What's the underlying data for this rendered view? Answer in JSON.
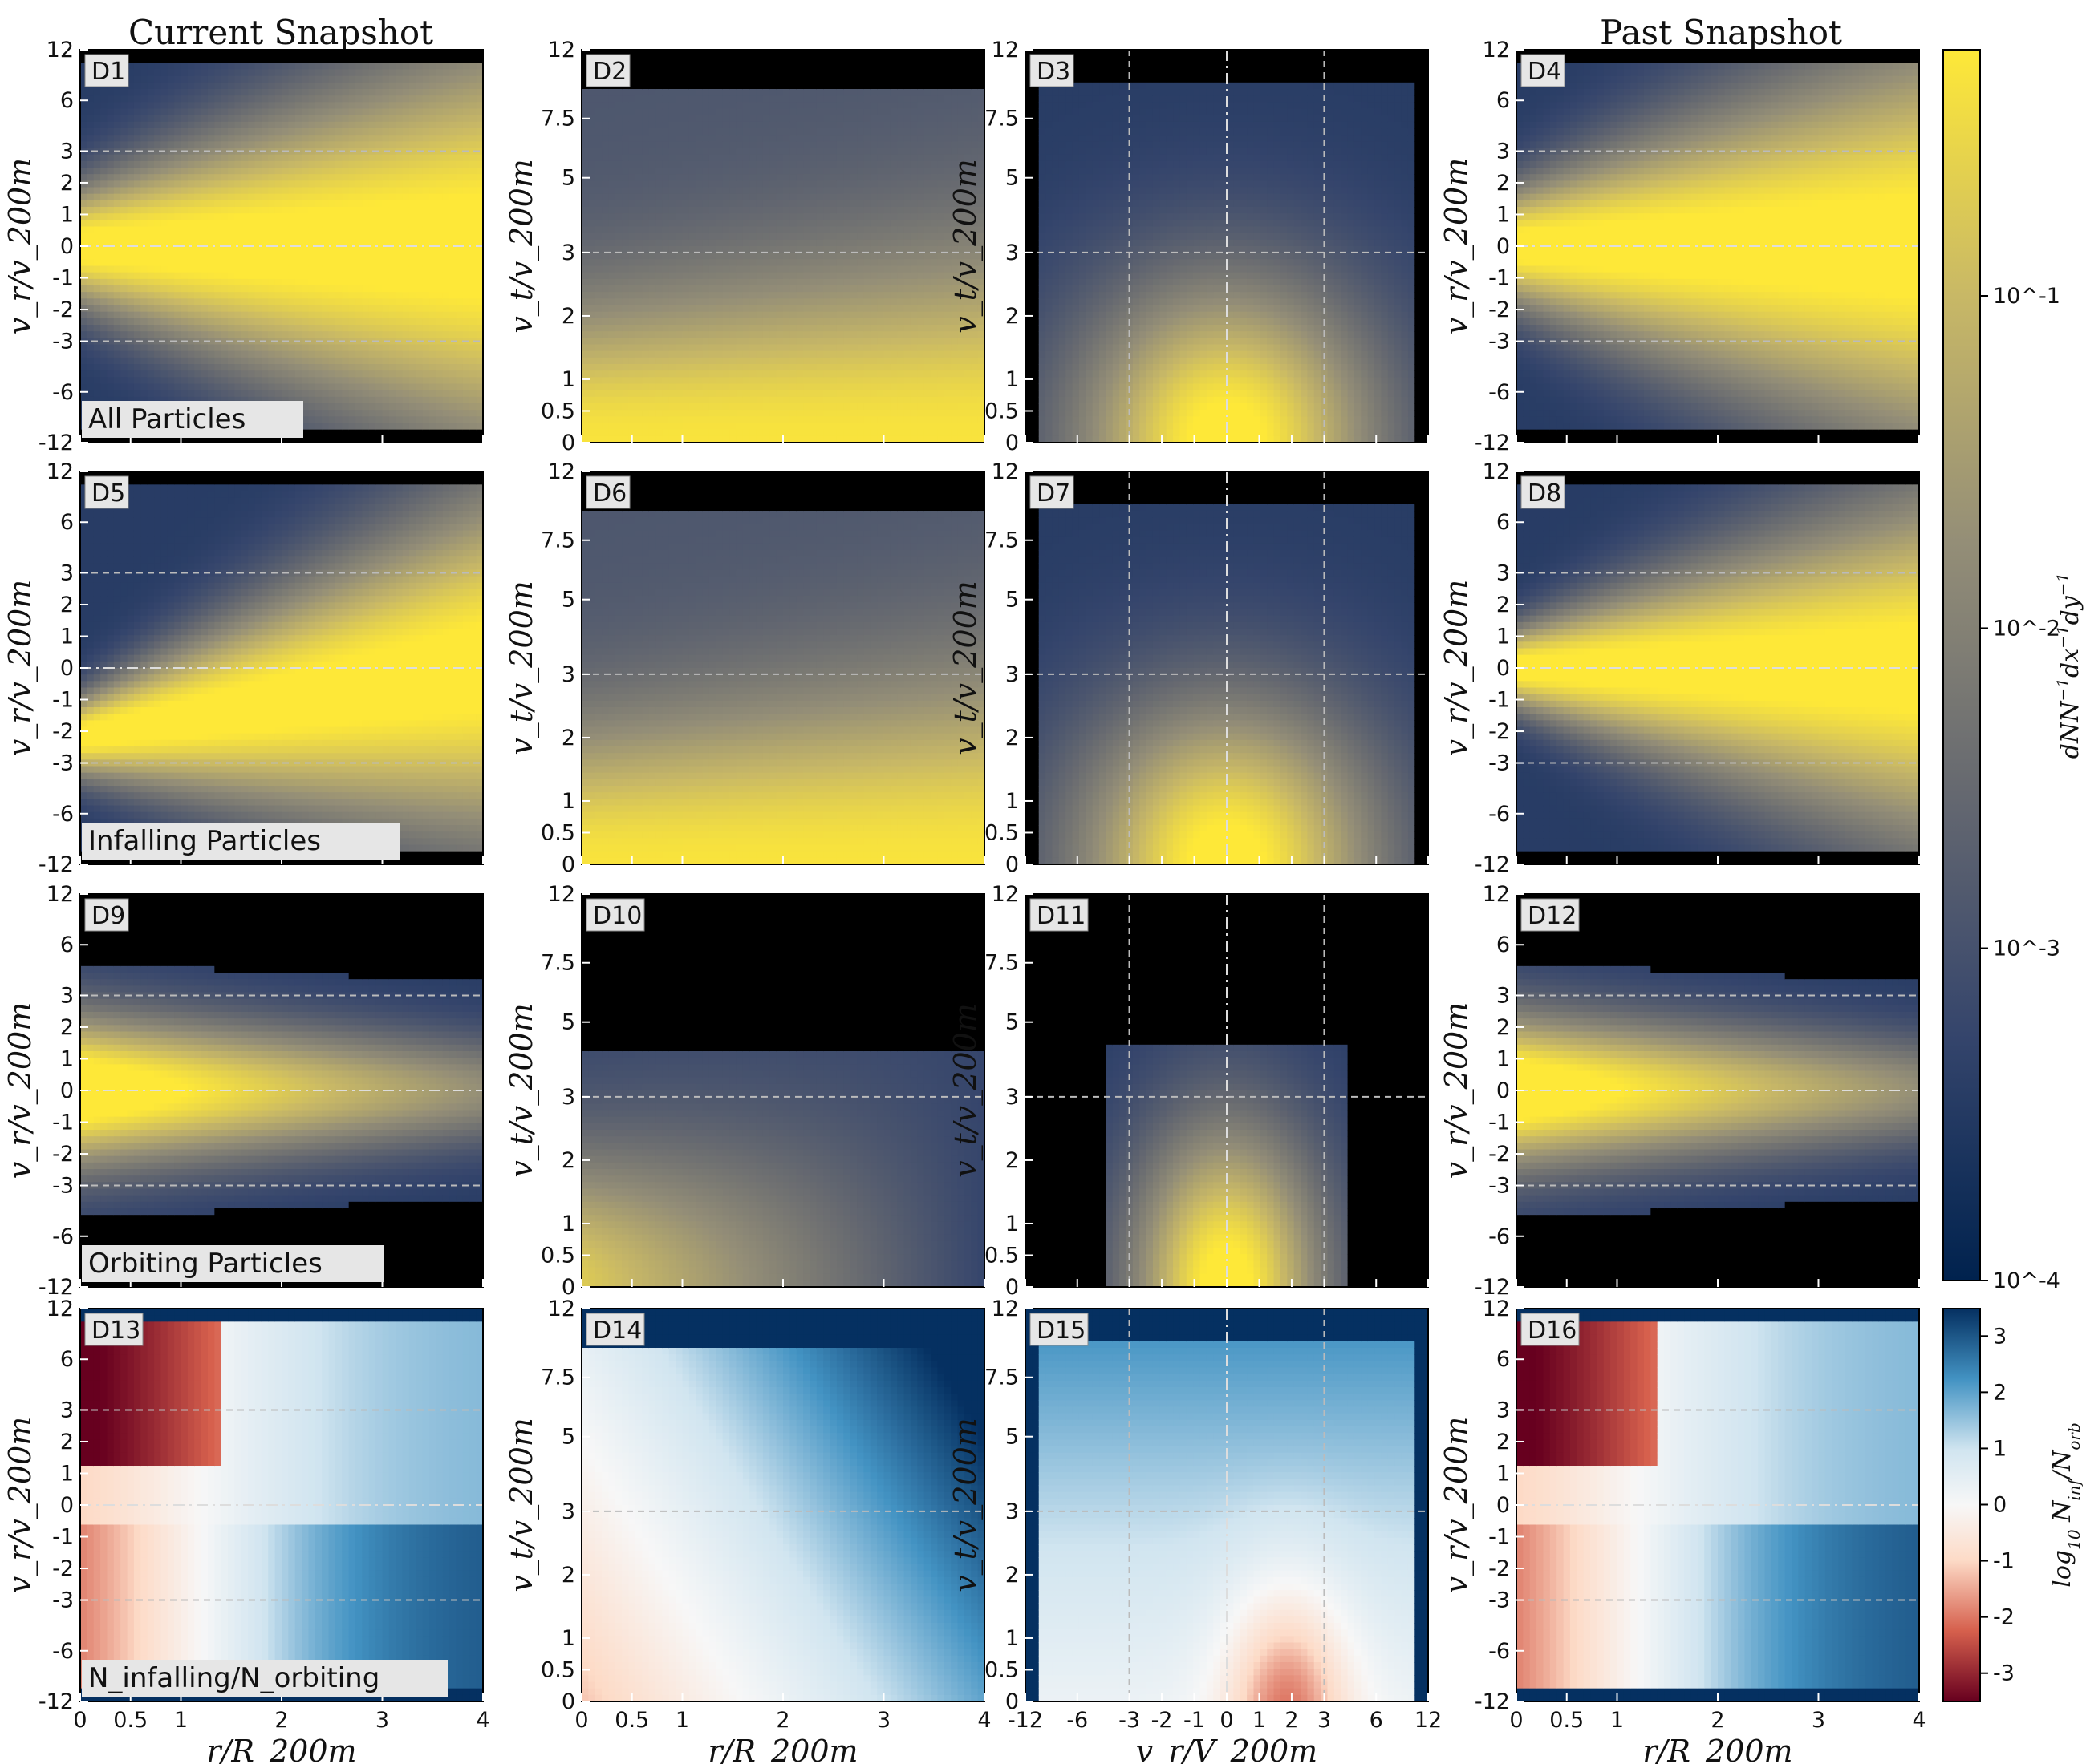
{
  "columns": {
    "left_title": "Current Snapshot",
    "right_title": "Past Snapshot"
  },
  "axes": {
    "vr_label": "v_r/v_200m",
    "vt_label": "v_t/v_200m",
    "r_label": "r/R_200m",
    "vr_x_label": "v_r/V_200m",
    "vr_ticks": [
      "-12",
      "-6",
      "-3",
      "-2",
      "-1",
      "0",
      "1",
      "2",
      "3",
      "6",
      "12"
    ],
    "vt_ticks": [
      "0",
      "0.5",
      "1",
      "2",
      "3",
      "5",
      "7.5",
      "12"
    ],
    "r_ticks": [
      "0",
      "0.5",
      "1",
      "2",
      "3",
      "4"
    ],
    "vr_x_ticks": [
      "-12",
      "-6",
      "-3",
      "-2",
      "-1",
      "0",
      "1",
      "2",
      "3",
      "6",
      "12"
    ]
  },
  "notes": {
    "all": "All Particles",
    "infalling": "Infalling Particles",
    "orbiting": "Orbiting Particles",
    "ratio": "N_infalling/N_orbiting"
  },
  "colorbars": {
    "density": {
      "label": "dNN^-1dx^-1dy^-1",
      "ticks": [
        "10^-1",
        "10^-2",
        "10^-3",
        "10^-4"
      ],
      "colors": [
        "#00224e",
        "#35456c",
        "#666970",
        "#948e77",
        "#c8b866",
        "#fee838"
      ]
    },
    "ratio": {
      "label": "log10 N_inf/N_orb",
      "ticks": [
        "3",
        "2",
        "1",
        "0",
        "-1",
        "-2",
        "-3"
      ],
      "colors": [
        "#67001f",
        "#d6604d",
        "#fddbc7",
        "#f7f7f7",
        "#d1e5f0",
        "#4393c3",
        "#053061"
      ]
    }
  },
  "chart_data": [
    {
      "type": "heatmap",
      "panel": "D1",
      "population": "all",
      "snapshot": "current",
      "x": "r/R_200m",
      "y": "v_r/v_200m",
      "xlim": [
        0,
        4
      ],
      "ylim": [
        -12,
        12
      ],
      "yscale": "symlog"
    },
    {
      "type": "heatmap",
      "panel": "D2",
      "population": "all",
      "snapshot": "current",
      "x": "r/R_200m",
      "y": "v_t/v_200m",
      "xlim": [
        0,
        4
      ],
      "ylim": [
        0,
        12
      ],
      "yscale": "symlog"
    },
    {
      "type": "heatmap",
      "panel": "D3",
      "population": "all",
      "snapshot": "current",
      "x": "v_r/V_200m",
      "y": "v_t/v_200m",
      "xlim": [
        -12,
        12
      ],
      "ylim": [
        0,
        12
      ],
      "xscale": "symlog",
      "yscale": "symlog"
    },
    {
      "type": "heatmap",
      "panel": "D4",
      "population": "all",
      "snapshot": "past",
      "x": "r/R_200m",
      "y": "v_r/v_200m",
      "xlim": [
        0,
        4
      ],
      "ylim": [
        -12,
        12
      ],
      "yscale": "symlog"
    },
    {
      "type": "heatmap",
      "panel": "D5",
      "population": "infalling",
      "snapshot": "current",
      "x": "r/R_200m",
      "y": "v_r/v_200m",
      "xlim": [
        0,
        4
      ],
      "ylim": [
        -12,
        12
      ],
      "yscale": "symlog"
    },
    {
      "type": "heatmap",
      "panel": "D6",
      "population": "infalling",
      "snapshot": "current",
      "x": "r/R_200m",
      "y": "v_t/v_200m",
      "xlim": [
        0,
        4
      ],
      "ylim": [
        0,
        12
      ],
      "yscale": "symlog"
    },
    {
      "type": "heatmap",
      "panel": "D7",
      "population": "infalling",
      "snapshot": "current",
      "x": "v_r/V_200m",
      "y": "v_t/v_200m",
      "xlim": [
        -12,
        12
      ],
      "ylim": [
        0,
        12
      ]
    },
    {
      "type": "heatmap",
      "panel": "D8",
      "population": "infalling",
      "snapshot": "past",
      "x": "r/R_200m",
      "y": "v_r/v_200m",
      "xlim": [
        0,
        4
      ],
      "ylim": [
        -12,
        12
      ]
    },
    {
      "type": "heatmap",
      "panel": "D9",
      "population": "orbiting",
      "snapshot": "current",
      "x": "r/R_200m",
      "y": "v_r/v_200m",
      "xlim": [
        0,
        4
      ],
      "ylim": [
        -12,
        12
      ]
    },
    {
      "type": "heatmap",
      "panel": "D10",
      "population": "orbiting",
      "snapshot": "current",
      "x": "r/R_200m",
      "y": "v_t/v_200m",
      "xlim": [
        0,
        4
      ],
      "ylim": [
        0,
        12
      ]
    },
    {
      "type": "heatmap",
      "panel": "D11",
      "population": "orbiting",
      "snapshot": "current",
      "x": "v_r/V_200m",
      "y": "v_t/v_200m",
      "xlim": [
        -12,
        12
      ],
      "ylim": [
        0,
        12
      ]
    },
    {
      "type": "heatmap",
      "panel": "D12",
      "population": "orbiting",
      "snapshot": "past",
      "x": "r/R_200m",
      "y": "v_r/v_200m",
      "xlim": [
        0,
        4
      ],
      "ylim": [
        -12,
        12
      ]
    },
    {
      "type": "heatmap",
      "panel": "D13",
      "population": "ratio",
      "snapshot": "current",
      "x": "r/R_200m",
      "y": "v_r/v_200m",
      "xlim": [
        0,
        4
      ],
      "ylim": [
        -12,
        12
      ]
    },
    {
      "type": "heatmap",
      "panel": "D14",
      "population": "ratio",
      "snapshot": "current",
      "x": "r/R_200m",
      "y": "v_t/v_200m",
      "xlim": [
        0,
        4
      ],
      "ylim": [
        0,
        12
      ]
    },
    {
      "type": "heatmap",
      "panel": "D15",
      "population": "ratio",
      "snapshot": "current",
      "x": "v_r/V_200m",
      "y": "v_t/v_200m",
      "xlim": [
        -12,
        12
      ],
      "ylim": [
        0,
        12
      ]
    },
    {
      "type": "heatmap",
      "panel": "D16",
      "population": "ratio",
      "snapshot": "past",
      "x": "r/R_200m",
      "y": "v_r/v_200m",
      "xlim": [
        0,
        4
      ],
      "ylim": [
        -12,
        12
      ]
    }
  ]
}
